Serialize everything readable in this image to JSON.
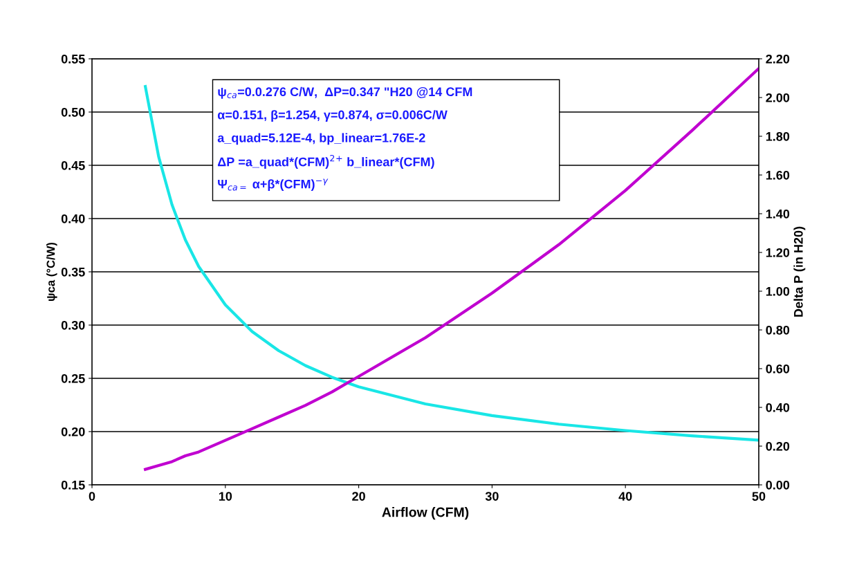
{
  "chart_data": {
    "type": "line",
    "xlabel": "Airflow (CFM)",
    "ylabel": "ψca (°C/W)",
    "y2label": "Delta P (in H20)",
    "xlim": [
      0,
      50
    ],
    "xticks": [
      0,
      10,
      20,
      30,
      40,
      50
    ],
    "ylim": [
      0.15,
      0.55
    ],
    "yticks": [
      {
        "value": 0.15,
        "label": "0.15"
      },
      {
        "value": 0.2,
        "label": "0.20"
      },
      {
        "value": 0.25,
        "label": "0.25"
      },
      {
        "value": 0.3,
        "label": "0.30"
      },
      {
        "value": 0.35,
        "label": "0.35"
      },
      {
        "value": 0.4,
        "label": "0.40"
      },
      {
        "value": 0.45,
        "label": "0.45"
      },
      {
        "value": 0.5,
        "label": "0.50"
      },
      {
        "value": 0.55,
        "label": "0.55"
      }
    ],
    "y2lim": [
      0,
      2.2
    ],
    "y2ticks": [
      {
        "value": 0,
        "label": "0.00"
      },
      {
        "value": 0.2,
        "label": "0.20"
      },
      {
        "value": 0.4,
        "label": "0.40"
      },
      {
        "value": 0.6,
        "label": "0.60"
      },
      {
        "value": 0.8,
        "label": "0.80"
      },
      {
        "value": 1.0,
        "label": "1.00"
      },
      {
        "value": 1.2,
        "label": "1.20"
      },
      {
        "value": 1.4,
        "label": "1.40"
      },
      {
        "value": 1.6,
        "label": "1.60"
      },
      {
        "value": 1.8,
        "label": "1.80"
      },
      {
        "value": 2.0,
        "label": "2.00"
      },
      {
        "value": 2.2,
        "label": "2.20"
      }
    ],
    "grid": "y",
    "marker": "none",
    "line_style": "solid",
    "series": [
      {
        "color": "#19e6e6",
        "x": [
          4,
          5,
          6,
          7,
          8,
          10,
          12,
          14,
          16,
          18,
          20,
          25,
          30,
          35,
          40,
          45,
          50
        ],
        "values": [
          0.524,
          0.458,
          0.413,
          0.38,
          0.355,
          0.319,
          0.294,
          0.276,
          0.262,
          0.251,
          0.242,
          0.226,
          0.215,
          0.207,
          0.201,
          0.196,
          0.192
        ]
      },
      {
        "color": "#c000d0",
        "axis": "y2",
        "x": [
          4,
          5,
          6,
          7,
          8,
          10,
          12,
          14,
          16,
          18,
          20,
          25,
          30,
          35,
          40,
          45,
          50
        ],
        "values": [
          0.08,
          0.1,
          0.12,
          0.15,
          0.17,
          0.23,
          0.29,
          0.35,
          0.41,
          0.48,
          0.56,
          0.76,
          0.99,
          1.24,
          1.52,
          1.83,
          2.15
        ]
      }
    ],
    "annotations": [
      "ψ$_{ca}$=0.0.276 C/W,  ΔP=0.347 \"H20 @14 CFM",
      "α=0.151, β=1.254, γ=0.874, σ=0.006C/W",
      "a_quad=5.12E-4, bp_linear=1.76E-2",
      "ΔP =a_quad*(CFM)$^{2}$$^{+}$ b_linear*(CFM)",
      "Ψ$_{ca=}$ α+β*(CFM)$^{−γ}$"
    ]
  }
}
